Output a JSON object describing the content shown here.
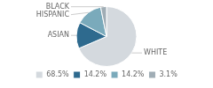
{
  "chart_data": {
    "type": "pie",
    "categories": [
      "WHITE",
      "ASIAN",
      "HISPANIC",
      "BLACK"
    ],
    "values": [
      68.5,
      14.2,
      14.2,
      3.1
    ],
    "value_labels": [
      "68.5%",
      "14.2%",
      "14.2%",
      "3.1%"
    ],
    "colors": [
      "#d4d9de",
      "#2e6a8e",
      "#7aaabb",
      "#a0adb5"
    ],
    "legend": "bottom"
  }
}
